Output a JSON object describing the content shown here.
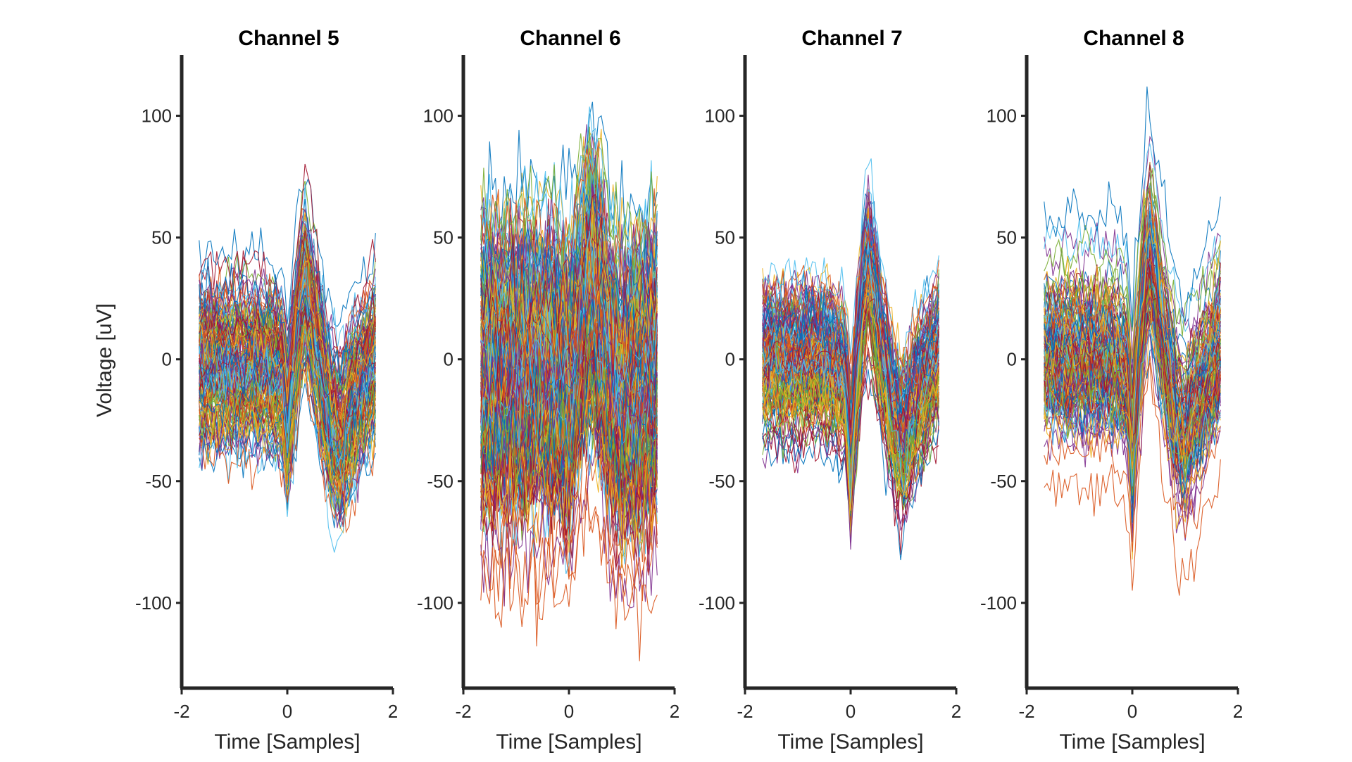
{
  "figure": {
    "background": "#ffffff",
    "axis_color": "#262626",
    "shared_ylabel": "Voltage [uV]",
    "palette": [
      "#0072BD",
      "#D95319",
      "#EDB120",
      "#7E2F8E",
      "#77AC30",
      "#4DBEEE",
      "#A2142F"
    ]
  },
  "chart_data": [
    {
      "type": "line",
      "title": "Channel 5",
      "xlabel": "Time  [Samples]",
      "ylabel": "Voltage [uV]",
      "xlim": [
        -2,
        2
      ],
      "ylim": [
        -135,
        125
      ],
      "xticks": [
        -2,
        0,
        2
      ],
      "yticks": [
        -100,
        -50,
        0,
        50,
        100
      ],
      "legend": "none",
      "grid": false,
      "waveform": {
        "x": [
          -1.67,
          -1.25,
          -0.83,
          -0.42,
          -0.08,
          0.0,
          0.08,
          0.25,
          0.33,
          0.42,
          0.58,
          0.83,
          1.0,
          1.25,
          1.67
        ],
        "mean": [
          0,
          0,
          0,
          0,
          -5,
          -25,
          -8,
          25,
          33,
          25,
          5,
          -25,
          -32,
          -15,
          5
        ],
        "spread": 20,
        "n_traces": 150
      }
    },
    {
      "type": "line",
      "title": "Channel 6",
      "xlabel": "Time  [Samples]",
      "xlim": [
        -2,
        2
      ],
      "ylim": [
        -135,
        125
      ],
      "xticks": [
        -2,
        0,
        2
      ],
      "yticks": [
        -100,
        -50,
        0,
        50,
        100
      ],
      "legend": "none",
      "grid": false,
      "waveform": {
        "x": [
          -1.67,
          -1.25,
          -0.83,
          -0.42,
          -0.08,
          0.0,
          0.08,
          0.25,
          0.42,
          0.58,
          0.83,
          1.0,
          1.25,
          1.67
        ],
        "mean": [
          0,
          0,
          0,
          0,
          -3,
          -10,
          0,
          20,
          32,
          20,
          -5,
          -12,
          -8,
          0
        ],
        "spread": 38,
        "n_traces": 220
      }
    },
    {
      "type": "line",
      "title": "Channel 7",
      "xlabel": "Time  [Samples]",
      "xlim": [
        -2,
        2
      ],
      "ylim": [
        -135,
        125
      ],
      "xticks": [
        -2,
        0,
        2
      ],
      "yticks": [
        -100,
        -50,
        0,
        50,
        100
      ],
      "legend": "none",
      "grid": false,
      "waveform": {
        "x": [
          -1.67,
          -1.25,
          -0.83,
          -0.42,
          -0.08,
          0.0,
          0.08,
          0.25,
          0.33,
          0.42,
          0.58,
          0.83,
          1.0,
          1.25,
          1.67
        ],
        "mean": [
          0,
          0,
          0,
          0,
          -10,
          -40,
          -15,
          30,
          40,
          28,
          5,
          -25,
          -33,
          -15,
          5
        ],
        "spread": 20,
        "n_traces": 150
      }
    },
    {
      "type": "line",
      "title": "Channel 8",
      "xlabel": "Time  [Samples]",
      "xlim": [
        -2,
        2
      ],
      "ylim": [
        -135,
        125
      ],
      "xticks": [
        -2,
        0,
        2
      ],
      "yticks": [
        -100,
        -50,
        0,
        50,
        100
      ],
      "legend": "none",
      "grid": false,
      "waveform": {
        "x": [
          -1.67,
          -1.25,
          -0.83,
          -0.42,
          -0.08,
          0.0,
          0.08,
          0.25,
          0.33,
          0.42,
          0.58,
          0.83,
          1.0,
          1.25,
          1.67
        ],
        "mean": [
          0,
          0,
          0,
          0,
          -8,
          -40,
          -12,
          32,
          40,
          30,
          5,
          -25,
          -32,
          -18,
          5
        ],
        "spread": 20,
        "n_traces": 150
      }
    }
  ]
}
